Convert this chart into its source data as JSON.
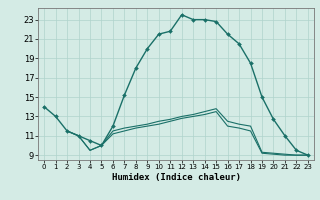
{
  "xlabel": "Humidex (Indice chaleur)",
  "bg_color": "#d4ebe5",
  "grid_color": "#afd4cc",
  "line_color": "#1a7068",
  "xlim": [
    -0.5,
    23.5
  ],
  "ylim": [
    8.5,
    24.2
  ],
  "xticks": [
    0,
    1,
    2,
    3,
    4,
    5,
    6,
    7,
    8,
    9,
    10,
    11,
    12,
    13,
    14,
    15,
    16,
    17,
    18,
    19,
    20,
    21,
    22,
    23
  ],
  "yticks": [
    9,
    11,
    13,
    15,
    17,
    19,
    21,
    23
  ],
  "line1_x": [
    0,
    1,
    2,
    3,
    4,
    5,
    6,
    7,
    8,
    9,
    10,
    11,
    12,
    13,
    14,
    15,
    16,
    17,
    18,
    19,
    20,
    21,
    22,
    23
  ],
  "line1_y": [
    14.0,
    13.0,
    11.5,
    11.0,
    10.5,
    10.0,
    12.0,
    15.2,
    18.0,
    20.0,
    21.5,
    21.8,
    23.5,
    23.0,
    23.0,
    22.8,
    21.5,
    20.5,
    18.5,
    15.0,
    12.7,
    11.0,
    9.5,
    9.0
  ],
  "line2_x": [
    2,
    3,
    4,
    5,
    6,
    7,
    8,
    9,
    10,
    11,
    12,
    13,
    14,
    15,
    16,
    17,
    18,
    19,
    20,
    21,
    22,
    23
  ],
  "line2_y": [
    11.5,
    11.0,
    9.5,
    10.0,
    11.5,
    11.8,
    12.0,
    12.2,
    12.5,
    12.7,
    13.0,
    13.2,
    13.5,
    13.8,
    12.5,
    12.2,
    12.0,
    9.3,
    9.2,
    9.1,
    9.0,
    9.0
  ],
  "line3_x": [
    2,
    3,
    4,
    5,
    6,
    7,
    8,
    9,
    10,
    11,
    12,
    13,
    14,
    15,
    16,
    17,
    18,
    19,
    20,
    21,
    22,
    23
  ],
  "line3_y": [
    11.5,
    11.0,
    9.5,
    10.0,
    11.2,
    11.5,
    11.8,
    12.0,
    12.2,
    12.5,
    12.8,
    13.0,
    13.2,
    13.5,
    12.0,
    11.8,
    11.5,
    9.2,
    9.1,
    9.0,
    9.0,
    9.0
  ]
}
